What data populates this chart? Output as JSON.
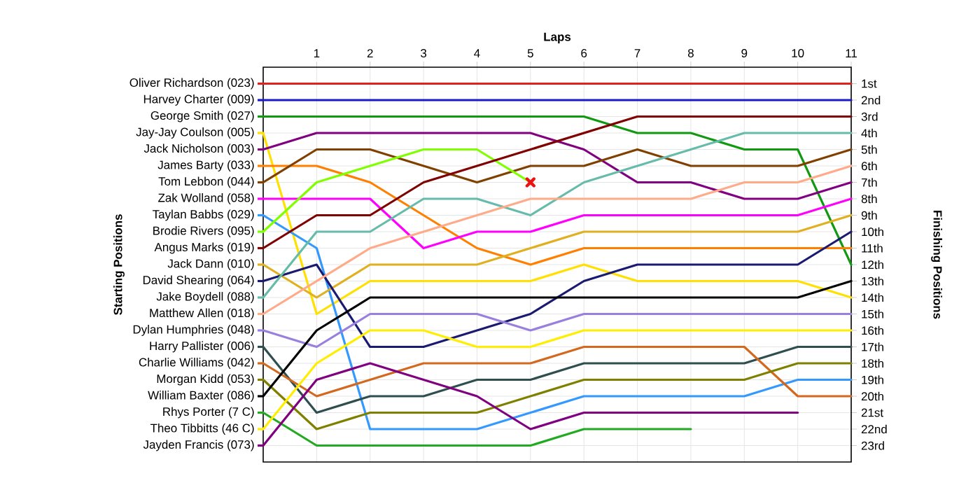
{
  "chart_data": {
    "type": "line",
    "xlabel": "Laps",
    "ylabel": "Finishing Positions",
    "annotations": [
      "Starting Positions"
    ],
    "x": [
      0,
      1,
      2,
      3,
      4,
      5,
      6,
      7,
      8,
      9,
      10,
      11
    ],
    "xlim": [
      0,
      11
    ],
    "xticks": [
      1,
      2,
      3,
      4,
      5,
      6,
      7,
      8,
      9,
      10,
      11
    ],
    "ylim": [
      24,
      0
    ],
    "yticks": [
      {
        "value": 1,
        "label": "1st"
      },
      {
        "value": 2,
        "label": "2nd"
      },
      {
        "value": 3,
        "label": "3rd"
      },
      {
        "value": 4,
        "label": "4th"
      },
      {
        "value": 5,
        "label": "5th"
      },
      {
        "value": 6,
        "label": "6th"
      },
      {
        "value": 7,
        "label": "7th"
      },
      {
        "value": 8,
        "label": "8th"
      },
      {
        "value": 9,
        "label": "9th"
      },
      {
        "value": 10,
        "label": "10th"
      },
      {
        "value": 11,
        "label": "11th"
      },
      {
        "value": 12,
        "label": "12th"
      },
      {
        "value": 13,
        "label": "13th"
      },
      {
        "value": 14,
        "label": "14th"
      },
      {
        "value": 15,
        "label": "15th"
      },
      {
        "value": 16,
        "label": "16th"
      },
      {
        "value": 17,
        "label": "17th"
      },
      {
        "value": 18,
        "label": "18th"
      },
      {
        "value": 19,
        "label": "19th"
      },
      {
        "value": 20,
        "label": "20th"
      },
      {
        "value": 21,
        "label": "21st"
      },
      {
        "value": 22,
        "label": "22nd"
      },
      {
        "value": 23,
        "label": "23rd"
      }
    ],
    "grid": true,
    "legend": "left",
    "series": [
      {
        "name": "Oliver Richardson (023)",
        "color": "#dd2222",
        "values": [
          1,
          1,
          1,
          1,
          1,
          1,
          1,
          1,
          1,
          1,
          1,
          1
        ]
      },
      {
        "name": "Harvey Charter (009)",
        "color": "#1a1acc",
        "values": [
          2,
          2,
          2,
          2,
          2,
          2,
          2,
          2,
          2,
          2,
          2,
          2
        ]
      },
      {
        "name": "George Smith (027)",
        "color": "#119911",
        "values": [
          3,
          3,
          3,
          3,
          3,
          3,
          3,
          4,
          4,
          5,
          5,
          12
        ]
      },
      {
        "name": "Jay-Jay Coulson (005)",
        "color": "#ffe000",
        "values": [
          4,
          15,
          13,
          13,
          13,
          13,
          12,
          13,
          13,
          13,
          13,
          14
        ]
      },
      {
        "name": "Jack Nicholson (003)",
        "color": "#800080",
        "values": [
          5,
          4,
          4,
          4,
          4,
          4,
          5,
          7,
          7,
          8,
          8,
          7
        ]
      },
      {
        "name": "James Barty (033)",
        "color": "#ff8000",
        "values": [
          6,
          6,
          7,
          9,
          11,
          12,
          11,
          11,
          11,
          11,
          11,
          11
        ]
      },
      {
        "name": "Tom Lebbon (044)",
        "color": "#804000",
        "values": [
          7,
          5,
          5,
          6,
          7,
          6,
          6,
          5,
          6,
          6,
          6,
          5
        ]
      },
      {
        "name": "Zak Wolland (058)",
        "color": "#ff00ff",
        "values": [
          8,
          8,
          8,
          11,
          10,
          10,
          9,
          9,
          9,
          9,
          9,
          8
        ]
      },
      {
        "name": "Taylan Babbs (029)",
        "color": "#3399ff",
        "values": [
          9,
          11,
          22,
          22,
          22,
          21,
          20,
          20,
          20,
          20,
          19,
          19
        ]
      },
      {
        "name": "Brodie Rivers (095)",
        "color": "#80ff00",
        "values": [
          10,
          7,
          6,
          5,
          5,
          7,
          null,
          null,
          null,
          null,
          null,
          null
        ]
      },
      {
        "name": "Angus Marks (019)",
        "color": "#800000",
        "values": [
          11,
          9,
          9,
          7,
          6,
          5,
          4,
          3,
          3,
          3,
          3,
          3
        ]
      },
      {
        "name": "Jack Dann (010)",
        "color": "#e0b020",
        "values": [
          12,
          14,
          12,
          12,
          12,
          11,
          10,
          10,
          10,
          10,
          10,
          9
        ]
      },
      {
        "name": "David Shearing (064)",
        "color": "#1a1a70",
        "values": [
          13,
          12,
          17,
          17,
          16,
          15,
          13,
          12,
          12,
          12,
          12,
          10
        ]
      },
      {
        "name": "Jake Boydell (088)",
        "color": "#66bbaa",
        "values": [
          14,
          10,
          10,
          8,
          8,
          9,
          7,
          6,
          5,
          4,
          4,
          4
        ]
      },
      {
        "name": "Matthew Allen (018)",
        "color": "#ffaa88",
        "values": [
          15,
          13,
          11,
          10,
          9,
          8,
          8,
          8,
          8,
          7,
          7,
          6
        ]
      },
      {
        "name": "Dylan Humphries (048)",
        "color": "#9980dd",
        "values": [
          16,
          17,
          15,
          15,
          15,
          16,
          15,
          15,
          15,
          15,
          15,
          15
        ]
      },
      {
        "name": "Harry Pallister (006)",
        "color": "#2f4f4f",
        "values": [
          17,
          21,
          20,
          20,
          19,
          19,
          18,
          18,
          18,
          18,
          17,
          17
        ]
      },
      {
        "name": "Charlie Williams (042)",
        "color": "#d2691e",
        "values": [
          18,
          20,
          19,
          18,
          18,
          18,
          17,
          17,
          17,
          17,
          20,
          20
        ]
      },
      {
        "name": "Morgan Kidd (053)",
        "color": "#808000",
        "values": [
          19,
          22,
          21,
          21,
          21,
          20,
          19,
          19,
          19,
          19,
          18,
          18
        ]
      },
      {
        "name": "William Baxter (086)",
        "color": "#000000",
        "values": [
          20,
          16,
          14,
          14,
          14,
          14,
          14,
          14,
          14,
          14,
          14,
          13
        ]
      },
      {
        "name": "Rhys Porter (7   C)",
        "color": "#22aa22",
        "values": [
          21,
          23,
          23,
          23,
          23,
          23,
          22,
          22,
          22,
          null,
          null,
          null
        ]
      },
      {
        "name": "Theo Tibbitts (46 C)",
        "color": "#ffee00",
        "values": [
          22,
          18,
          16,
          16,
          17,
          17,
          16,
          16,
          16,
          16,
          16,
          16
        ]
      },
      {
        "name": "Jayden Francis (073)",
        "color": "#800080",
        "values": [
          23,
          19,
          18,
          19,
          20,
          22,
          21,
          21,
          21,
          21,
          21,
          null
        ]
      },
      {
        "type": "scatter",
        "marker": "cross",
        "color": "#ee1111",
        "x": [
          5
        ],
        "values": [
          7
        ]
      }
    ]
  }
}
